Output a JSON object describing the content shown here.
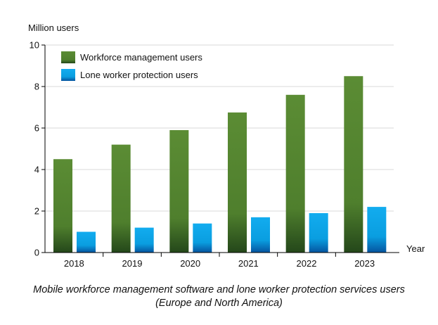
{
  "chart_data": {
    "type": "bar",
    "categories": [
      "2018",
      "2019",
      "2020",
      "2021",
      "2022",
      "2023"
    ],
    "series": [
      {
        "name": "Workforce management users",
        "values": [
          4.5,
          5.2,
          5.9,
          6.75,
          7.6,
          8.5
        ],
        "color": "#5a8a32"
      },
      {
        "name": "Lone worker protection users",
        "values": [
          1.0,
          1.2,
          1.4,
          1.7,
          1.9,
          2.2
        ],
        "color": "#0aa5e8"
      }
    ],
    "ylabel": "Million users",
    "xlabel": "Year",
    "ylim": [
      0,
      10
    ],
    "yticks": [
      0,
      2,
      4,
      6,
      8,
      10
    ],
    "grid": true,
    "legend": "top-left",
    "caption": "Mobile workforce management software and lone worker protection services users (Europe and North America)"
  }
}
